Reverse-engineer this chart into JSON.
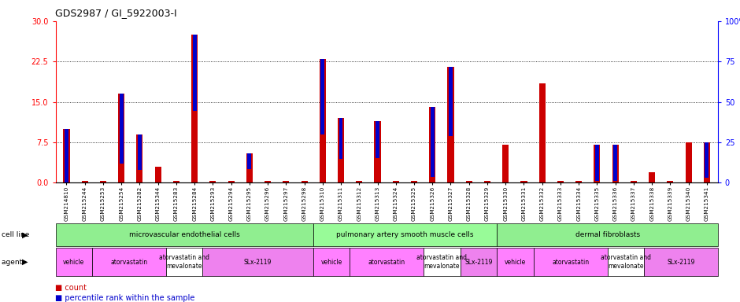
{
  "title": "GDS2987 / GI_5922003-I",
  "samples": [
    "GSM214810",
    "GSM215244",
    "GSM215253",
    "GSM215254",
    "GSM215282",
    "GSM215344",
    "GSM215283",
    "GSM215284",
    "GSM215293",
    "GSM215294",
    "GSM215295",
    "GSM215296",
    "GSM215297",
    "GSM215298",
    "GSM215310",
    "GSM215311",
    "GSM215312",
    "GSM215313",
    "GSM215324",
    "GSM215325",
    "GSM215326",
    "GSM215327",
    "GSM215328",
    "GSM215329",
    "GSM215330",
    "GSM215331",
    "GSM215332",
    "GSM215333",
    "GSM215334",
    "GSM215335",
    "GSM215336",
    "GSM215337",
    "GSM215338",
    "GSM215339",
    "GSM215340",
    "GSM215341"
  ],
  "red_values": [
    10.0,
    0.3,
    0.3,
    16.5,
    9.0,
    3.0,
    0.3,
    27.5,
    0.3,
    0.3,
    5.5,
    0.3,
    0.3,
    0.3,
    23.0,
    12.0,
    0.3,
    11.5,
    0.3,
    0.3,
    14.0,
    21.5,
    0.3,
    0.3,
    7.0,
    0.3,
    18.5,
    0.3,
    0.3,
    7.0,
    7.0,
    0.3,
    2.0,
    0.3,
    7.5,
    7.5
  ],
  "blue_values_pct": [
    33,
    0,
    0,
    43,
    22,
    0,
    0,
    47,
    0,
    0,
    10,
    0,
    0,
    0,
    47,
    25,
    0,
    23,
    0,
    0,
    43,
    43,
    0,
    0,
    0,
    0,
    0,
    0,
    0,
    22,
    22,
    0,
    0,
    0,
    0,
    22
  ],
  "cell_line_groups": [
    {
      "label": "microvascular endothelial cells",
      "start": 0,
      "end": 13,
      "color": "#90EE90"
    },
    {
      "label": "pulmonary artery smooth muscle cells",
      "start": 14,
      "end": 23,
      "color": "#98FB98"
    },
    {
      "label": "dermal fibroblasts",
      "start": 24,
      "end": 35,
      "color": "#90EE90"
    }
  ],
  "agent_groups": [
    {
      "label": "vehicle",
      "start": 0,
      "end": 1,
      "color": "#FF80FF"
    },
    {
      "label": "atorvastatin",
      "start": 2,
      "end": 5,
      "color": "#FF80FF"
    },
    {
      "label": "atorvastatin and\nmevalonate",
      "start": 6,
      "end": 7,
      "color": "#FFFFFF"
    },
    {
      "label": "SLx-2119",
      "start": 8,
      "end": 13,
      "color": "#EE82EE"
    },
    {
      "label": "vehicle",
      "start": 14,
      "end": 15,
      "color": "#FF80FF"
    },
    {
      "label": "atorvastatin",
      "start": 16,
      "end": 19,
      "color": "#FF80FF"
    },
    {
      "label": "atorvastatin and\nmevalonate",
      "start": 20,
      "end": 21,
      "color": "#FFFFFF"
    },
    {
      "label": "SLx-2119",
      "start": 22,
      "end": 23,
      "color": "#EE82EE"
    },
    {
      "label": "vehicle",
      "start": 24,
      "end": 25,
      "color": "#FF80FF"
    },
    {
      "label": "atorvastatin",
      "start": 26,
      "end": 29,
      "color": "#FF80FF"
    },
    {
      "label": "atorvastatin and\nmevalonate",
      "start": 30,
      "end": 31,
      "color": "#FFFFFF"
    },
    {
      "label": "SLx-2119",
      "start": 32,
      "end": 35,
      "color": "#EE82EE"
    }
  ],
  "ylim_left": [
    0,
    30
  ],
  "ylim_right": [
    0,
    100
  ],
  "yticks_left": [
    0,
    7.5,
    15,
    22.5,
    30
  ],
  "yticks_right": [
    0,
    25,
    50,
    75,
    100
  ],
  "bar_color_red": "#CC0000",
  "bar_color_blue": "#0000CC",
  "bar_width": 0.35
}
